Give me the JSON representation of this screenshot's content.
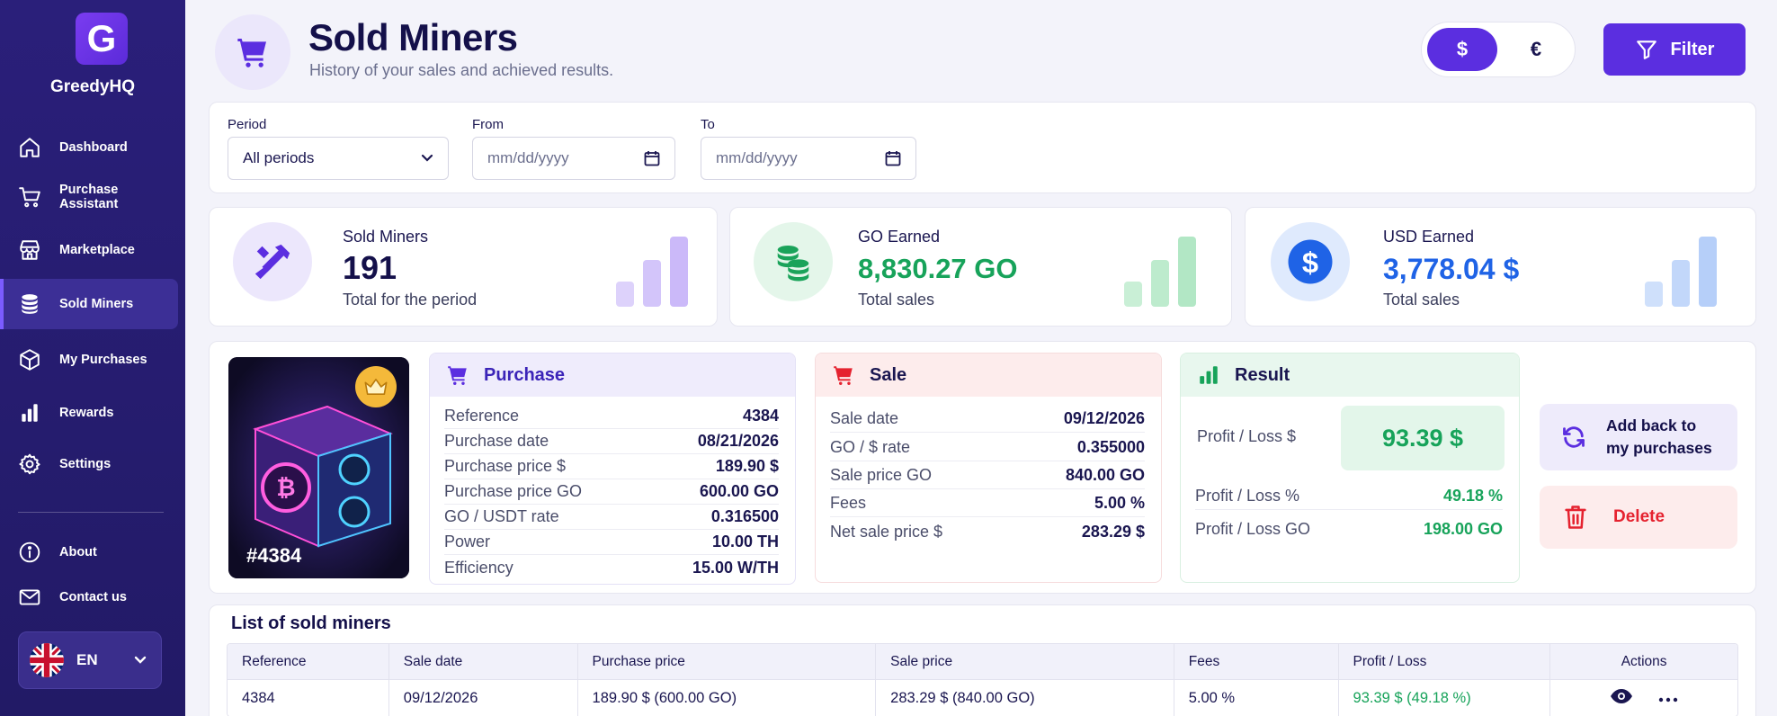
{
  "brand": {
    "logo_letter": "G",
    "name": "GreedyHQ"
  },
  "nav": [
    {
      "label": "Dashboard",
      "icon": "home-icon"
    },
    {
      "label": "Purchase Assistant",
      "icon": "cart-icon"
    },
    {
      "label": "Marketplace",
      "icon": "store-icon"
    },
    {
      "label": "Sold Miners",
      "icon": "coins-icon",
      "active": true
    },
    {
      "label": "My Purchases",
      "icon": "box-icon"
    },
    {
      "label": "Rewards",
      "icon": "bar-chart-icon"
    },
    {
      "label": "Settings",
      "icon": "gear-icon"
    }
  ],
  "nav_bottom": [
    {
      "label": "About",
      "icon": "info-icon"
    },
    {
      "label": "Contact us",
      "icon": "mail-icon"
    }
  ],
  "language": {
    "code": "EN",
    "flag": "uk-flag-icon"
  },
  "header": {
    "title": "Sold Miners",
    "subtitle": "History of your sales and achieved results.",
    "currency_usd": "$",
    "currency_eur": "€",
    "filter_label": "Filter"
  },
  "filters": {
    "period_label": "Period",
    "period_value": "All periods",
    "from_label": "From",
    "from_placeholder": "mm/dd/yyyy",
    "to_label": "To",
    "to_placeholder": "mm/dd/yyyy"
  },
  "stats": {
    "sold": {
      "label": "Sold Miners",
      "value": "191",
      "sub": "Total for the period"
    },
    "go": {
      "label": "GO Earned",
      "value": "8,830.27 GO",
      "sub": "Total sales"
    },
    "usd": {
      "label": "USD Earned",
      "value": "3,778.04 $",
      "sub": "Total sales"
    }
  },
  "miner": {
    "tag": "#4384"
  },
  "purchase": {
    "title": "Purchase",
    "rows": [
      {
        "k": "Reference",
        "v": "4384"
      },
      {
        "k": "Purchase date",
        "v": "08/21/2026"
      },
      {
        "k": "Purchase price $",
        "v": "189.90 $"
      },
      {
        "k": "Purchase price GO",
        "v": "600.00 GO"
      },
      {
        "k": "GO / USDT rate",
        "v": "0.316500"
      },
      {
        "k": "Power",
        "v": "10.00 TH"
      },
      {
        "k": "Efficiency",
        "v": "15.00 W/TH"
      }
    ]
  },
  "sale": {
    "title": "Sale",
    "rows": [
      {
        "k": "Sale date",
        "v": "09/12/2026"
      },
      {
        "k": "GO / $ rate",
        "v": "0.355000"
      },
      {
        "k": "Sale price GO",
        "v": "840.00 GO"
      },
      {
        "k": "Fees",
        "v": "5.00 %"
      },
      {
        "k": "Net sale price $",
        "v": "283.29 $"
      }
    ]
  },
  "result": {
    "title": "Result",
    "profit_usd_label": "Profit / Loss $",
    "profit_usd_value": "93.39 $",
    "profit_pct_label": "Profit / Loss %",
    "profit_pct_value": "49.18 %",
    "profit_go_label": "Profit / Loss GO",
    "profit_go_value": "198.00 GO"
  },
  "actions": {
    "add_back_line1": "Add back to",
    "add_back_line2": "my purchases",
    "delete_label": "Delete"
  },
  "table": {
    "title": "List of sold miners",
    "columns": [
      "Reference",
      "Sale date",
      "Purchase price",
      "Sale price",
      "Fees",
      "Profit / Loss",
      "Actions"
    ],
    "rows": [
      {
        "reference": "4384",
        "sale_date": "09/12/2026",
        "purchase_price": "189.90 $ (600.00 GO)",
        "sale_price": "283.29 $ (840.00 GO)",
        "fees": "5.00 %",
        "profit": "93.39 $ (49.18 %)"
      }
    ]
  },
  "colors": {
    "accent": "#5b2ee0",
    "sidebar": "#2a1f7a",
    "green": "#17a35a",
    "blue": "#1f63e6",
    "red": "#e5222f"
  }
}
